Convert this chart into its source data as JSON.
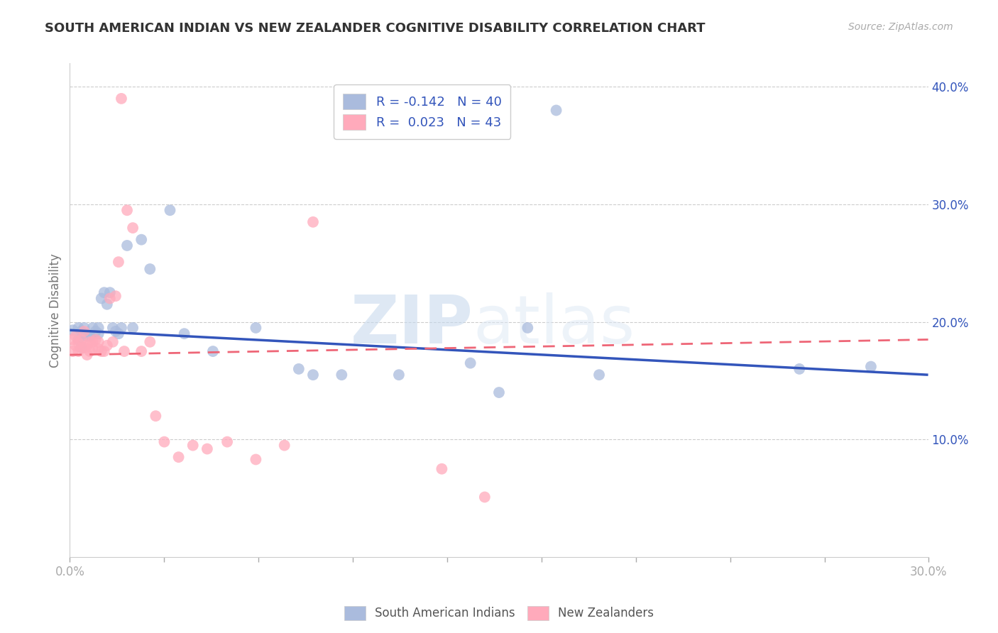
{
  "title": "SOUTH AMERICAN INDIAN VS NEW ZEALANDER COGNITIVE DISABILITY CORRELATION CHART",
  "source": "Source: ZipAtlas.com",
  "ylabel": "Cognitive Disability",
  "xlim": [
    0.0,
    0.3
  ],
  "ylim": [
    0.0,
    0.42
  ],
  "x_ticks": [
    0.0,
    0.033,
    0.066,
    0.099,
    0.132,
    0.165,
    0.198,
    0.231,
    0.264,
    0.3
  ],
  "y_ticks_right": [
    0.1,
    0.2,
    0.3,
    0.4
  ],
  "y_tick_labels_right": [
    "10.0%",
    "20.0%",
    "30.0%",
    "40.0%"
  ],
  "grid_color": "#cccccc",
  "background_color": "#ffffff",
  "legend_labels": [
    "South American Indians",
    "New Zealanders"
  ],
  "blue_color": "#aabbdd",
  "pink_color": "#ffaabb",
  "blue_line_color": "#3355bb",
  "pink_line_color": "#ee6677",
  "watermark_zip": "ZIP",
  "watermark_atlas": "atlas",
  "blue_scatter_x": [
    0.001,
    0.003,
    0.003,
    0.004,
    0.004,
    0.005,
    0.005,
    0.006,
    0.007,
    0.008,
    0.009,
    0.01,
    0.01,
    0.011,
    0.012,
    0.013,
    0.014,
    0.015,
    0.016,
    0.017,
    0.018,
    0.02,
    0.022,
    0.025,
    0.028,
    0.035,
    0.04,
    0.05,
    0.065,
    0.08,
    0.085,
    0.095,
    0.115,
    0.14,
    0.15,
    0.16,
    0.17,
    0.185,
    0.255,
    0.28
  ],
  "blue_scatter_y": [
    0.193,
    0.195,
    0.185,
    0.192,
    0.178,
    0.19,
    0.195,
    0.188,
    0.188,
    0.195,
    0.192,
    0.195,
    0.19,
    0.22,
    0.225,
    0.215,
    0.225,
    0.195,
    0.192,
    0.19,
    0.195,
    0.265,
    0.195,
    0.27,
    0.245,
    0.295,
    0.19,
    0.175,
    0.195,
    0.16,
    0.155,
    0.155,
    0.155,
    0.165,
    0.14,
    0.195,
    0.38,
    0.155,
    0.16,
    0.162
  ],
  "pink_scatter_x": [
    0.001,
    0.001,
    0.002,
    0.002,
    0.003,
    0.003,
    0.004,
    0.004,
    0.005,
    0.005,
    0.006,
    0.006,
    0.007,
    0.007,
    0.008,
    0.008,
    0.009,
    0.01,
    0.01,
    0.011,
    0.012,
    0.013,
    0.014,
    0.015,
    0.016,
    0.017,
    0.018,
    0.019,
    0.02,
    0.022,
    0.025,
    0.028,
    0.03,
    0.033,
    0.038,
    0.043,
    0.048,
    0.055,
    0.065,
    0.075,
    0.085,
    0.13,
    0.145
  ],
  "pink_scatter_y": [
    0.185,
    0.175,
    0.188,
    0.18,
    0.175,
    0.182,
    0.185,
    0.178,
    0.178,
    0.192,
    0.18,
    0.172,
    0.175,
    0.183,
    0.177,
    0.183,
    0.185,
    0.177,
    0.183,
    0.175,
    0.175,
    0.18,
    0.22,
    0.183,
    0.222,
    0.251,
    0.39,
    0.175,
    0.295,
    0.28,
    0.175,
    0.183,
    0.12,
    0.098,
    0.085,
    0.095,
    0.092,
    0.098,
    0.083,
    0.095,
    0.285,
    0.075,
    0.051
  ],
  "blue_line_x0": 0.0,
  "blue_line_y0": 0.193,
  "blue_line_x1": 0.3,
  "blue_line_y1": 0.155,
  "pink_line_x0": 0.0,
  "pink_line_y0": 0.172,
  "pink_line_x1": 0.3,
  "pink_line_y1": 0.185
}
